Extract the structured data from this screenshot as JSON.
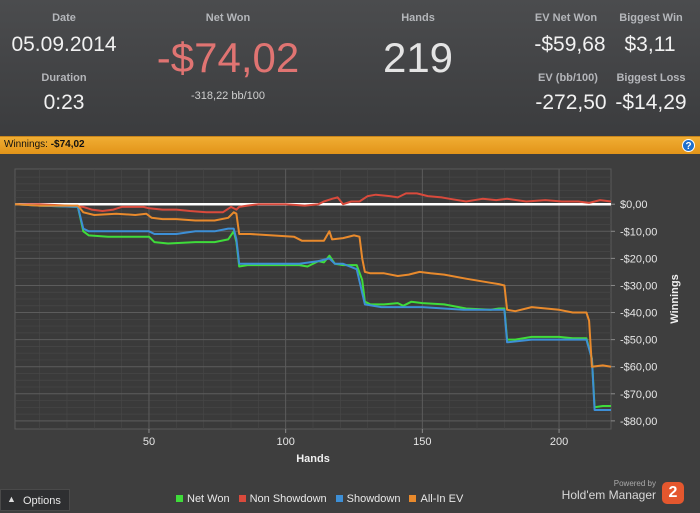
{
  "stats": {
    "date_label": "Date",
    "date_value": "05.09.2014",
    "duration_label": "Duration",
    "duration_value": "0:23",
    "net_won_label": "Net Won",
    "net_won_value": "-$74,02",
    "net_won_sub": "-318,22 bb/100",
    "hands_label": "Hands",
    "hands_value": "219",
    "ev_net_won_label": "EV Net Won",
    "ev_net_won_value": "-$59,68",
    "biggest_win_label": "Biggest Win",
    "biggest_win_value": "$3,11",
    "ev_bb_label": "EV (bb/100)",
    "ev_bb_value": "-272,50",
    "biggest_loss_label": "Biggest Loss",
    "biggest_loss_value": "-$14,29"
  },
  "colors": {
    "net_won_accent": "#e07472",
    "bar": "#e89f25",
    "net_won_line": "#3fdc3a",
    "non_showdown_line": "#d94a3c",
    "showdown_line": "#3d8fd6",
    "allin_line": "#e98a2c"
  },
  "winnings_bar": {
    "label": "Winnings:",
    "value": "-$74,02",
    "help_icon": "?"
  },
  "chart_data": {
    "type": "line",
    "title": "",
    "xlabel": "Hands",
    "ylabel": "Winnings",
    "xlim": [
      1,
      219
    ],
    "ylim": [
      -83,
      13
    ],
    "x_ticks": [
      50,
      100,
      150,
      200
    ],
    "y_ticks": [
      0,
      -10,
      -20,
      -30,
      -40,
      -50,
      -60,
      -70,
      -80
    ],
    "y_tick_labels": [
      "$0,00",
      "-$10,00",
      "-$20,00",
      "-$30,00",
      "-$40,00",
      "-$50,00",
      "-$60,00",
      "-$70,00",
      "-$80,00"
    ],
    "series": [
      {
        "name": "Net Won",
        "color": "#3fdc3a",
        "points": [
          [
            1,
            0
          ],
          [
            10,
            -0.5
          ],
          [
            24,
            -1
          ],
          [
            26,
            -10
          ],
          [
            28,
            -11.5
          ],
          [
            35,
            -12
          ],
          [
            45,
            -12
          ],
          [
            50,
            -12
          ],
          [
            52,
            -14
          ],
          [
            57,
            -14.5
          ],
          [
            67,
            -14
          ],
          [
            74,
            -14
          ],
          [
            79,
            -13
          ],
          [
            81,
            -10
          ],
          [
            82,
            -14
          ],
          [
            83,
            -23
          ],
          [
            86,
            -22.5
          ],
          [
            90,
            -22.5
          ],
          [
            105,
            -22.5
          ],
          [
            108,
            -23
          ],
          [
            112,
            -21
          ],
          [
            114,
            -21.5
          ],
          [
            116,
            -19
          ],
          [
            118,
            -22
          ],
          [
            121,
            -22.5
          ],
          [
            126,
            -22.5
          ],
          [
            128,
            -28
          ],
          [
            129,
            -36
          ],
          [
            131,
            -37
          ],
          [
            136,
            -37
          ],
          [
            141,
            -36.5
          ],
          [
            143,
            -37.5
          ],
          [
            146,
            -36
          ],
          [
            150,
            -36.5
          ],
          [
            158,
            -37
          ],
          [
            166,
            -38.5
          ],
          [
            175,
            -39
          ],
          [
            178,
            -38.5
          ],
          [
            180,
            -38.5
          ],
          [
            181,
            -50
          ],
          [
            184,
            -50
          ],
          [
            190,
            -49
          ],
          [
            200,
            -49
          ],
          [
            205,
            -49.5
          ],
          [
            210,
            -49.5
          ],
          [
            212,
            -57
          ],
          [
            213,
            -75
          ],
          [
            216,
            -74.5
          ],
          [
            219,
            -74.5
          ]
        ]
      },
      {
        "name": "Non Showdown",
        "color": "#d94a3c",
        "points": [
          [
            1,
            0
          ],
          [
            10,
            0
          ],
          [
            20,
            -0.5
          ],
          [
            26,
            -1
          ],
          [
            29,
            -2
          ],
          [
            33,
            -2.5
          ],
          [
            37,
            -2
          ],
          [
            40,
            -1
          ],
          [
            45,
            -1
          ],
          [
            48,
            -1
          ],
          [
            50,
            -1.5
          ],
          [
            55,
            -2
          ],
          [
            60,
            -2
          ],
          [
            65,
            -2.5
          ],
          [
            71,
            -3
          ],
          [
            77,
            -3
          ],
          [
            80,
            -1
          ],
          [
            82,
            -2
          ],
          [
            83,
            -1
          ],
          [
            86,
            -0.5
          ],
          [
            90,
            0
          ],
          [
            100,
            0
          ],
          [
            107,
            -0.5
          ],
          [
            112,
            0
          ],
          [
            114,
            1
          ],
          [
            117,
            2
          ],
          [
            119,
            2.5
          ],
          [
            121,
            0
          ],
          [
            124,
            1
          ],
          [
            127,
            1
          ],
          [
            130,
            3
          ],
          [
            133,
            3.5
          ],
          [
            138,
            3
          ],
          [
            141,
            2.5
          ],
          [
            144,
            4
          ],
          [
            148,
            4
          ],
          [
            152,
            3
          ],
          [
            157,
            2.5
          ],
          [
            160,
            2
          ],
          [
            166,
            1
          ],
          [
            172,
            2
          ],
          [
            177,
            1.5
          ],
          [
            181,
            2
          ],
          [
            188,
            1
          ],
          [
            195,
            1.5
          ],
          [
            201,
            1
          ],
          [
            207,
            1
          ],
          [
            211,
            0.5
          ],
          [
            215,
            1.5
          ],
          [
            219,
            1
          ]
        ]
      },
      {
        "name": "Showdown",
        "color": "#3d8fd6",
        "points": [
          [
            1,
            0
          ],
          [
            10,
            -0.5
          ],
          [
            24,
            -1
          ],
          [
            26,
            -9
          ],
          [
            28,
            -10
          ],
          [
            40,
            -10
          ],
          [
            50,
            -10
          ],
          [
            52,
            -11
          ],
          [
            60,
            -11
          ],
          [
            67,
            -10
          ],
          [
            74,
            -10
          ],
          [
            79,
            -9
          ],
          [
            81,
            -9
          ],
          [
            82,
            -13
          ],
          [
            83,
            -22
          ],
          [
            88,
            -22
          ],
          [
            105,
            -22
          ],
          [
            112,
            -21
          ],
          [
            116,
            -20
          ],
          [
            118,
            -22
          ],
          [
            121,
            -22
          ],
          [
            126,
            -24
          ],
          [
            129,
            -37
          ],
          [
            135,
            -38
          ],
          [
            150,
            -38
          ],
          [
            165,
            -39
          ],
          [
            180,
            -39
          ],
          [
            181,
            -51
          ],
          [
            190,
            -50
          ],
          [
            205,
            -50
          ],
          [
            210,
            -50
          ],
          [
            212,
            -57
          ],
          [
            213,
            -76
          ],
          [
            219,
            -76
          ]
        ]
      },
      {
        "name": "All-In EV",
        "color": "#e98a2c",
        "points": [
          [
            1,
            0
          ],
          [
            10,
            -0.5
          ],
          [
            24,
            -0.5
          ],
          [
            26,
            -3
          ],
          [
            30,
            -4
          ],
          [
            38,
            -3.5
          ],
          [
            45,
            -4
          ],
          [
            49,
            -3.5
          ],
          [
            51,
            -5
          ],
          [
            55,
            -5.5
          ],
          [
            60,
            -5.5
          ],
          [
            67,
            -6
          ],
          [
            74,
            -6
          ],
          [
            79,
            -5
          ],
          [
            81,
            -3
          ],
          [
            82,
            -3.5
          ],
          [
            83,
            -11
          ],
          [
            87,
            -11
          ],
          [
            95,
            -11.5
          ],
          [
            103,
            -12
          ],
          [
            106,
            -13.5
          ],
          [
            110,
            -13.5
          ],
          [
            114,
            -13.5
          ],
          [
            116,
            -10
          ],
          [
            117,
            -13
          ],
          [
            121,
            -12.5
          ],
          [
            125,
            -11.5
          ],
          [
            127,
            -12
          ],
          [
            128,
            -20
          ],
          [
            129,
            -25
          ],
          [
            131,
            -25.5
          ],
          [
            136,
            -25.5
          ],
          [
            141,
            -26.5
          ],
          [
            145,
            -26
          ],
          [
            149,
            -25
          ],
          [
            153,
            -25.5
          ],
          [
            158,
            -26
          ],
          [
            166,
            -27.5
          ],
          [
            175,
            -29
          ],
          [
            178,
            -29.5
          ],
          [
            180,
            -30
          ],
          [
            181,
            -39
          ],
          [
            184,
            -39.5
          ],
          [
            190,
            -38
          ],
          [
            200,
            -39
          ],
          [
            205,
            -40
          ],
          [
            210,
            -40
          ],
          [
            211,
            -43
          ],
          [
            212,
            -60
          ],
          [
            216,
            -59.5
          ],
          [
            219,
            -60
          ]
        ]
      }
    ]
  },
  "legend": [
    {
      "label": "Net Won",
      "color": "#3fdc3a"
    },
    {
      "label": "Non Showdown",
      "color": "#d94a3c"
    },
    {
      "label": "Showdown",
      "color": "#3d8fd6"
    },
    {
      "label": "All-In EV",
      "color": "#e98a2c"
    }
  ],
  "options_label": "Options",
  "brand": {
    "powered_by": "Powered by",
    "name": "Hold'em Manager",
    "logo_text": "2"
  }
}
